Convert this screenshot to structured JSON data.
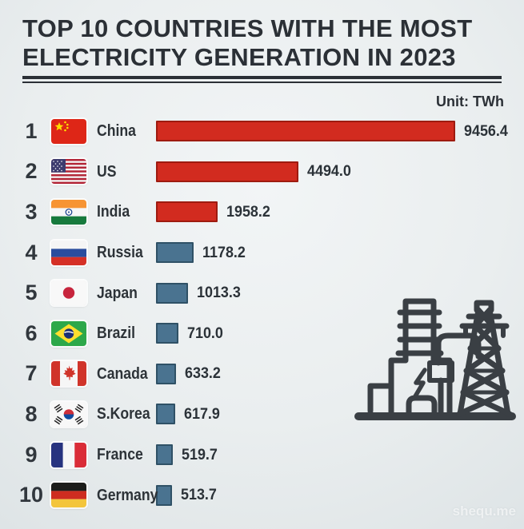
{
  "title": {
    "line1": "TOP 10 COUNTRIES WITH THE MOST",
    "line2": "ELECTRICITY GENERATION IN 2023"
  },
  "unit_label": "Unit: TWh",
  "watermark": "shequ.me",
  "colors": {
    "bar_red": "#d22b1f",
    "bar_red_border": "#9e1b10",
    "bar_blue": "#4a7390",
    "bar_blue_border": "#2f5166",
    "text_dark": "#2b3036",
    "background": "#eaeeef"
  },
  "chart_data": {
    "type": "bar",
    "orientation": "horizontal",
    "title": "TOP 10 COUNTRIES WITH THE MOST ELECTRICITY GENERATION IN 2023",
    "unit": "TWh",
    "xlim": [
      0,
      9456.4
    ],
    "grid": false,
    "legend": "none",
    "categories": [
      "China",
      "US",
      "India",
      "Russia",
      "Japan",
      "Brazil",
      "Canada",
      "S.Korea",
      "France",
      "Germany"
    ],
    "values": [
      9456.4,
      4494.0,
      1958.2,
      1178.2,
      1013.3,
      710.0,
      633.2,
      617.9,
      519.7,
      513.7
    ],
    "rows": [
      {
        "rank": "1",
        "country": "China",
        "value": 9456.4,
        "value_label": "9456.4",
        "color": "red",
        "flag": "flag-china"
      },
      {
        "rank": "2",
        "country": "US",
        "value": 4494.0,
        "value_label": "4494.0",
        "color": "red",
        "flag": "flag-us"
      },
      {
        "rank": "3",
        "country": "India",
        "value": 1958.2,
        "value_label": "1958.2",
        "color": "red",
        "flag": "flag-india"
      },
      {
        "rank": "4",
        "country": "Russia",
        "value": 1178.2,
        "value_label": "1178.2",
        "color": "blue",
        "flag": "flag-russia"
      },
      {
        "rank": "5",
        "country": "Japan",
        "value": 1013.3,
        "value_label": "1013.3",
        "color": "blue",
        "flag": "flag-japan"
      },
      {
        "rank": "6",
        "country": "Brazil",
        "value": 710.0,
        "value_label": "710.0",
        "color": "blue",
        "flag": "flag-brazil"
      },
      {
        "rank": "7",
        "country": "Canada",
        "value": 633.2,
        "value_label": "633.2",
        "color": "blue",
        "flag": "flag-canada"
      },
      {
        "rank": "8",
        "country": "S.Korea",
        "value": 617.9,
        "value_label": "617.9",
        "color": "blue",
        "flag": "flag-skorea"
      },
      {
        "rank": "9",
        "country": "France",
        "value": 519.7,
        "value_label": "519.7",
        "color": "blue",
        "flag": "flag-france"
      },
      {
        "rank": "10",
        "country": "Germany",
        "value": 513.7,
        "value_label": "513.7",
        "color": "blue",
        "flag": "flag-germany"
      }
    ]
  }
}
